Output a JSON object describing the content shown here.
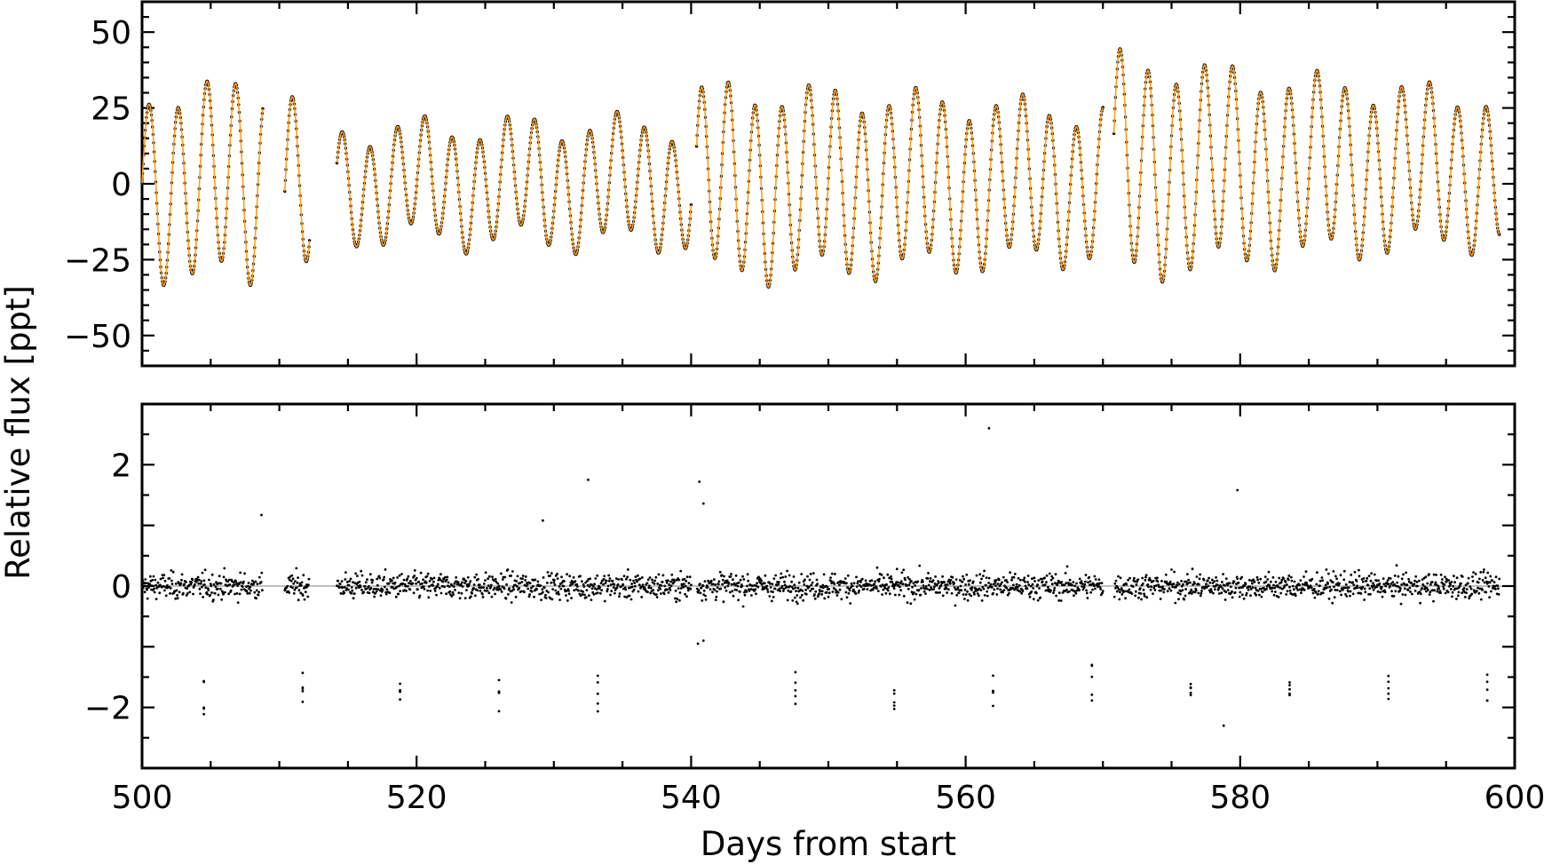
{
  "figure": {
    "ylabel": "Relative flux [ppt]",
    "xlabel": "Days from start"
  },
  "colors": {
    "data_points": "#000000",
    "model_line": "#ff9f1c",
    "zero_line": "#aaaaaa",
    "axes": "#000000"
  },
  "chart_data": [
    {
      "type": "scatter",
      "panel": "top",
      "description_of_marks": "light curve points with model overplotted",
      "xlim": [
        500,
        600
      ],
      "ylim": [
        -60,
        60
      ],
      "yticks": [
        -50,
        -25,
        0,
        25,
        50
      ],
      "ytick_labels": [
        "−50",
        "−25",
        "0",
        "25",
        "50"
      ],
      "grid": false,
      "gaps": [
        [
          508.8,
          510.4
        ],
        [
          512.2,
          514.2
        ],
        [
          540.0,
          540.4
        ],
        [
          570.0,
          570.8
        ],
        [
          598.9,
          600
        ]
      ],
      "segments": [
        {
          "start": 500.0,
          "end": 508.8,
          "center": 0,
          "amplitude": 28,
          "period": 2.1,
          "phase": 0.0
        },
        {
          "start": 510.4,
          "end": 512.2,
          "center": 0,
          "amplitude": 25,
          "period": 2.1,
          "phase": 0.0
        },
        {
          "start": 514.2,
          "end": 540.0,
          "center": 0,
          "amplitude": 14,
          "period": 2.0,
          "phase": 0.3
        },
        {
          "start": 540.4,
          "end": 570.0,
          "center": 0,
          "amplitude": 22,
          "period": 1.95,
          "phase": 0.4
        },
        {
          "start": 570.8,
          "end": 598.9,
          "center": 5,
          "amplitude": 34,
          "period": 2.05,
          "phase": 0.2
        }
      ]
    },
    {
      "type": "scatter",
      "panel": "bottom",
      "description_of_marks": "residuals",
      "xlim": [
        500,
        600
      ],
      "ylim": [
        -3,
        3
      ],
      "yticks": [
        -2,
        0,
        2
      ],
      "ytick_labels": [
        "−2",
        "0",
        "2"
      ],
      "xticks": [
        500,
        520,
        540,
        560,
        580,
        600
      ],
      "xtick_labels": [
        "500",
        "520",
        "540",
        "560",
        "580",
        "600"
      ],
      "grid": false,
      "zero_line": 0,
      "typical_scatter": 0.15,
      "outlier_columns_x": [
        504.5,
        511.7,
        518.8,
        526.0,
        533.2,
        547.6,
        554.8,
        562.0,
        569.2,
        576.4,
        583.6,
        590.8,
        598.0
      ],
      "outlier_column_y": -1.7,
      "isolated_outliers": [
        {
          "x": 508.7,
          "y": 1.17
        },
        {
          "x": 529.2,
          "y": 1.08
        },
        {
          "x": 532.5,
          "y": 1.75
        },
        {
          "x": 540.6,
          "y": 1.72
        },
        {
          "x": 540.9,
          "y": 1.36
        },
        {
          "x": 561.7,
          "y": 2.6
        },
        {
          "x": 579.8,
          "y": 1.58
        },
        {
          "x": 540.9,
          "y": -0.9
        },
        {
          "x": 540.5,
          "y": -0.95
        },
        {
          "x": 578.8,
          "y": -2.3
        }
      ]
    }
  ]
}
